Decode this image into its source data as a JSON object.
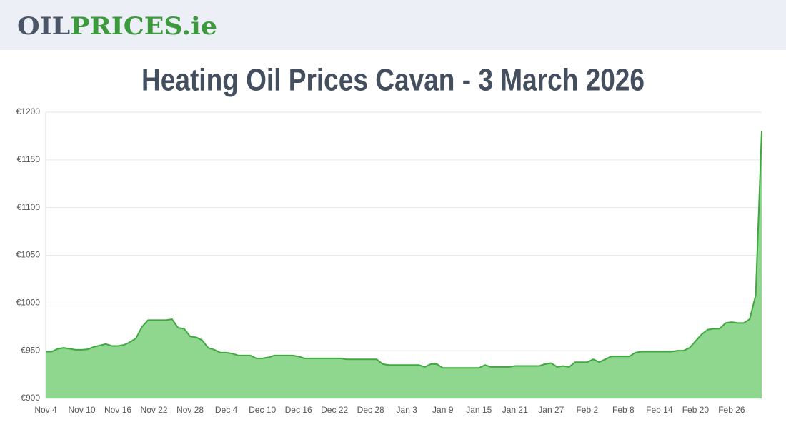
{
  "header": {
    "logo": [
      "OIL",
      "PRICES",
      ".ie"
    ]
  },
  "chart_data": {
    "type": "area",
    "title": "Heating Oil Prices Cavan - 3 March 2026",
    "color": "#3fa83f",
    "fill": "#8fd68f",
    "grid": true,
    "categories": [
      "Nov 4",
      null,
      null,
      null,
      null,
      null,
      "Nov 10",
      null,
      null,
      null,
      null,
      null,
      "Nov 16",
      null,
      null,
      null,
      null,
      null,
      "Nov 22",
      null,
      null,
      null,
      null,
      null,
      "Nov 28",
      null,
      null,
      null,
      null,
      null,
      "Dec 4",
      null,
      null,
      null,
      null,
      null,
      "Dec 10",
      null,
      null,
      null,
      null,
      null,
      "Dec 16",
      null,
      null,
      null,
      null,
      null,
      "Dec 22",
      null,
      null,
      null,
      null,
      null,
      "Dec 28",
      null,
      null,
      null,
      null,
      null,
      "Jan 3",
      null,
      null,
      null,
      null,
      null,
      "Jan 9",
      null,
      null,
      null,
      null,
      null,
      "Jan 15",
      null,
      null,
      null,
      null,
      null,
      "Jan 21",
      null,
      null,
      null,
      null,
      null,
      "Jan 27",
      null,
      null,
      null,
      null,
      null,
      "Feb 2",
      null,
      null,
      null,
      null,
      null,
      "Feb 8",
      null,
      null,
      null,
      null,
      null,
      "Feb 14",
      null,
      null,
      null,
      null,
      null,
      "Feb 20",
      null,
      null,
      null,
      null,
      null,
      "Feb 26",
      null,
      null,
      null,
      null,
      null
    ],
    "values": [
      949,
      949,
      952,
      953,
      952,
      951,
      951,
      951.5,
      954,
      955.5,
      957,
      955,
      955,
      956,
      959,
      963,
      975,
      982,
      982,
      982,
      982,
      983,
      974,
      973,
      965,
      964,
      961,
      953,
      951,
      948,
      948,
      947,
      945,
      945,
      945,
      942,
      942,
      943,
      945,
      945,
      945,
      945,
      944,
      942,
      942,
      942,
      942,
      942,
      942,
      942,
      941,
      941,
      941,
      941,
      941,
      941,
      936,
      935,
      935,
      935,
      935,
      935,
      935,
      933,
      936,
      936,
      932,
      932,
      932,
      932,
      932,
      932,
      932,
      935,
      933,
      933,
      933,
      933,
      934,
      934,
      934,
      934,
      934,
      936,
      937,
      933,
      934,
      933,
      938,
      938,
      938,
      941,
      938,
      941,
      944,
      944,
      944,
      944,
      948,
      949,
      949,
      949,
      949,
      949,
      949,
      950,
      950,
      953,
      960,
      967,
      972,
      973,
      973,
      979,
      980,
      979,
      979,
      983,
      1008,
      1180
    ],
    "ylim": [
      900,
      1200
    ],
    "yticks": [
      {
        "value": 900,
        "label": "€900"
      },
      {
        "value": 950,
        "label": "€950"
      },
      {
        "value": 1000,
        "label": "€1000"
      },
      {
        "value": 1050,
        "label": "€1050"
      },
      {
        "value": 1100,
        "label": "€1100"
      },
      {
        "value": 1150,
        "label": "€1150"
      },
      {
        "value": 1200,
        "label": "€1200"
      }
    ]
  }
}
